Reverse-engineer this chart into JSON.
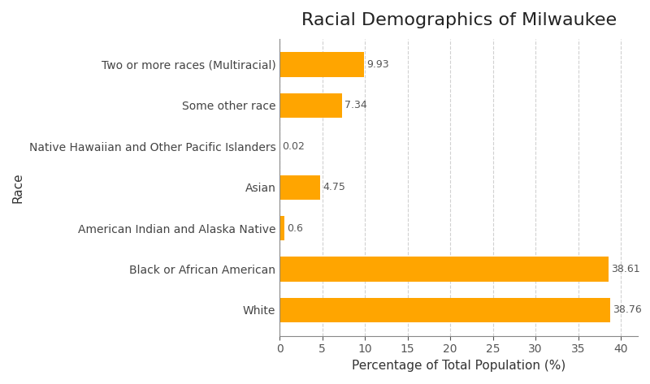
{
  "title": "Racial Demographics of Milwaukee",
  "xlabel": "Percentage of Total Population (%)",
  "ylabel": "Race",
  "categories": [
    "White",
    "Black or African American",
    "American Indian and Alaska Native",
    "Asian",
    "Native Hawaiian and Other Pacific Islanders",
    "Some other race",
    "Two or more races (Multiracial)"
  ],
  "values": [
    38.76,
    38.61,
    0.6,
    4.75,
    0.02,
    7.34,
    9.93
  ],
  "bar_color": "#FFA500",
  "background_color": "#FFFFFF",
  "grid_color": "#CCCCCC",
  "xlim": [
    0,
    42
  ],
  "xticks": [
    0,
    5,
    10,
    15,
    20,
    25,
    30,
    35,
    40
  ],
  "title_fontsize": 16,
  "label_fontsize": 11,
  "tick_fontsize": 10,
  "value_fontsize": 9
}
